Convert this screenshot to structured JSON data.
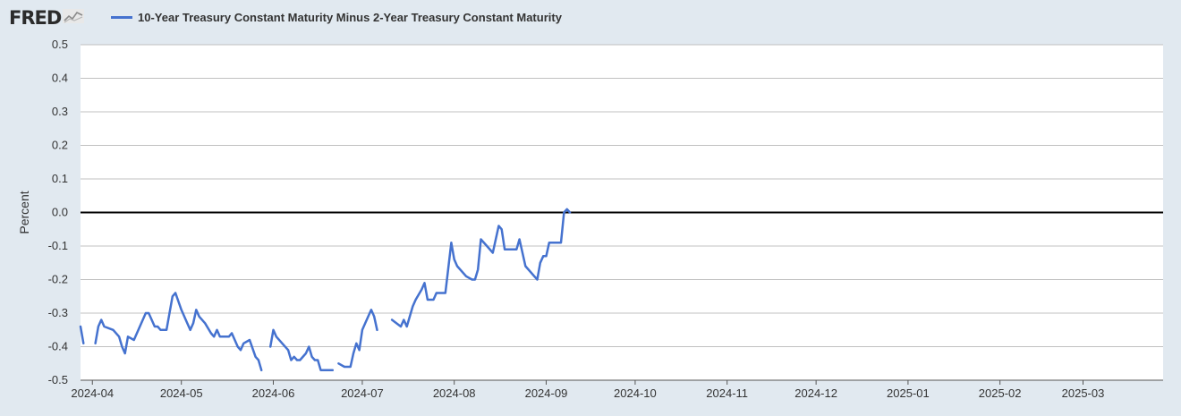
{
  "header": {
    "logo": "FRED",
    "logo_icon": "line-chart-icon"
  },
  "chart_data": {
    "type": "line",
    "title": "",
    "xlabel": "",
    "ylabel": "Percent",
    "ylim": [
      -0.5,
      0.5
    ],
    "yticks": [
      "0.5",
      "0.4",
      "0.3",
      "0.2",
      "0.1",
      "0.0",
      "-0.1",
      "-0.2",
      "-0.3",
      "-0.4",
      "-0.5"
    ],
    "ytick_values": [
      0.5,
      0.4,
      0.3,
      0.2,
      0.1,
      0.0,
      -0.1,
      -0.2,
      -0.3,
      -0.4,
      -0.5
    ],
    "xticks": [
      "2024-04",
      "2024-05",
      "2024-06",
      "2024-07",
      "2024-08",
      "2024-09",
      "2024-10",
      "2024-11",
      "2024-12",
      "2025-01",
      "2025-02",
      "2025-03"
    ],
    "xtick_dates": [
      "2024-04-01",
      "2024-05-01",
      "2024-06-01",
      "2024-07-01",
      "2024-08-01",
      "2024-09-01",
      "2024-10-01",
      "2024-11-01",
      "2024-12-01",
      "2025-01-01",
      "2025-02-01",
      "2025-03-01"
    ],
    "xlim": [
      "2024-03-28",
      "2025-03-28"
    ],
    "grid": true,
    "zero_line": true,
    "legend_position": "top-left",
    "colors": {
      "series": "#4572cf",
      "zero_line": "#000000",
      "grid": "#c0c0c0",
      "plot_bg": "#ffffff",
      "page_bg": "#e1e9f0"
    },
    "series": [
      {
        "name": "10-Year Treasury Constant Maturity Minus 2-Year Treasury Constant Maturity",
        "segments": [
          [
            [
              "2024-03-28",
              -0.34
            ],
            [
              "2024-03-29",
              -0.39
            ]
          ],
          [
            [
              "2024-04-02",
              -0.39
            ],
            [
              "2024-04-03",
              -0.34
            ],
            [
              "2024-04-04",
              -0.32
            ],
            [
              "2024-04-05",
              -0.34
            ],
            [
              "2024-04-08",
              -0.35
            ],
            [
              "2024-04-10",
              -0.37
            ],
            [
              "2024-04-11",
              -0.4
            ],
            [
              "2024-04-12",
              -0.42
            ],
            [
              "2024-04-13",
              -0.37
            ],
            [
              "2024-04-15",
              -0.38
            ],
            [
              "2024-04-17",
              -0.34
            ],
            [
              "2024-04-19",
              -0.3
            ],
            [
              "2024-04-20",
              -0.3
            ],
            [
              "2024-04-22",
              -0.34
            ],
            [
              "2024-04-23",
              -0.34
            ],
            [
              "2024-04-24",
              -0.35
            ],
            [
              "2024-04-25",
              -0.35
            ],
            [
              "2024-04-26",
              -0.35
            ],
            [
              "2024-04-28",
              -0.25
            ],
            [
              "2024-04-29",
              -0.24
            ],
            [
              "2024-05-01",
              -0.29
            ],
            [
              "2024-05-03",
              -0.33
            ],
            [
              "2024-05-04",
              -0.35
            ],
            [
              "2024-05-05",
              -0.33
            ],
            [
              "2024-05-06",
              -0.29
            ],
            [
              "2024-05-07",
              -0.31
            ],
            [
              "2024-05-09",
              -0.33
            ],
            [
              "2024-05-11",
              -0.36
            ],
            [
              "2024-05-12",
              -0.37
            ],
            [
              "2024-05-13",
              -0.35
            ],
            [
              "2024-05-14",
              -0.37
            ],
            [
              "2024-05-16",
              -0.37
            ],
            [
              "2024-05-17",
              -0.37
            ],
            [
              "2024-05-18",
              -0.36
            ],
            [
              "2024-05-19",
              -0.38
            ],
            [
              "2024-05-20",
              -0.4
            ],
            [
              "2024-05-21",
              -0.41
            ],
            [
              "2024-05-22",
              -0.39
            ],
            [
              "2024-05-24",
              -0.38
            ],
            [
              "2024-05-26",
              -0.43
            ],
            [
              "2024-05-27",
              -0.44
            ],
            [
              "2024-05-28",
              -0.47
            ]
          ],
          [
            [
              "2024-05-31",
              -0.4
            ],
            [
              "2024-06-01",
              -0.35
            ],
            [
              "2024-06-02",
              -0.37
            ],
            [
              "2024-06-04",
              -0.39
            ],
            [
              "2024-06-06",
              -0.41
            ],
            [
              "2024-06-07",
              -0.44
            ],
            [
              "2024-06-08",
              -0.43
            ],
            [
              "2024-06-09",
              -0.44
            ],
            [
              "2024-06-10",
              -0.44
            ],
            [
              "2024-06-12",
              -0.42
            ],
            [
              "2024-06-13",
              -0.4
            ],
            [
              "2024-06-14",
              -0.43
            ],
            [
              "2024-06-15",
              -0.44
            ],
            [
              "2024-06-16",
              -0.44
            ],
            [
              "2024-06-17",
              -0.47
            ],
            [
              "2024-06-20",
              -0.47
            ],
            [
              "2024-06-21",
              -0.47
            ]
          ],
          [
            [
              "2024-06-23",
              -0.45
            ],
            [
              "2024-06-25",
              -0.46
            ],
            [
              "2024-06-27",
              -0.46
            ],
            [
              "2024-06-28",
              -0.42
            ],
            [
              "2024-06-29",
              -0.39
            ],
            [
              "2024-06-30",
              -0.41
            ],
            [
              "2024-07-01",
              -0.35
            ],
            [
              "2024-07-02",
              -0.33
            ],
            [
              "2024-07-04",
              -0.29
            ],
            [
              "2024-07-05",
              -0.31
            ],
            [
              "2024-07-06",
              -0.35
            ]
          ],
          [
            [
              "2024-07-11",
              -0.32
            ],
            [
              "2024-07-14",
              -0.34
            ],
            [
              "2024-07-15",
              -0.32
            ],
            [
              "2024-07-16",
              -0.34
            ],
            [
              "2024-07-18",
              -0.28
            ],
            [
              "2024-07-19",
              -0.26
            ],
            [
              "2024-07-21",
              -0.23
            ],
            [
              "2024-07-22",
              -0.21
            ],
            [
              "2024-07-23",
              -0.26
            ],
            [
              "2024-07-24",
              -0.26
            ],
            [
              "2024-07-25",
              -0.26
            ],
            [
              "2024-07-26",
              -0.24
            ],
            [
              "2024-07-27",
              -0.24
            ],
            [
              "2024-07-28",
              -0.24
            ],
            [
              "2024-07-29",
              -0.24
            ],
            [
              "2024-07-31",
              -0.09
            ],
            [
              "2024-08-01",
              -0.14
            ],
            [
              "2024-08-02",
              -0.16
            ],
            [
              "2024-08-05",
              -0.19
            ],
            [
              "2024-08-07",
              -0.2
            ],
            [
              "2024-08-08",
              -0.2
            ],
            [
              "2024-08-09",
              -0.17
            ],
            [
              "2024-08-10",
              -0.08
            ],
            [
              "2024-08-12",
              -0.1
            ],
            [
              "2024-08-14",
              -0.12
            ],
            [
              "2024-08-16",
              -0.04
            ],
            [
              "2024-08-17",
              -0.05
            ],
            [
              "2024-08-18",
              -0.11
            ],
            [
              "2024-08-21",
              -0.11
            ],
            [
              "2024-08-22",
              -0.11
            ],
            [
              "2024-08-23",
              -0.08
            ],
            [
              "2024-08-25",
              -0.16
            ],
            [
              "2024-08-28",
              -0.19
            ],
            [
              "2024-08-29",
              -0.2
            ],
            [
              "2024-08-30",
              -0.15
            ],
            [
              "2024-08-31",
              -0.13
            ],
            [
              "2024-09-01",
              -0.13
            ],
            [
              "2024-09-02",
              -0.09
            ],
            [
              "2024-09-06",
              -0.09
            ],
            [
              "2024-09-07",
              0.0
            ],
            [
              "2024-09-08",
              0.01
            ],
            [
              "2024-09-09",
              0.0
            ]
          ]
        ]
      }
    ]
  }
}
